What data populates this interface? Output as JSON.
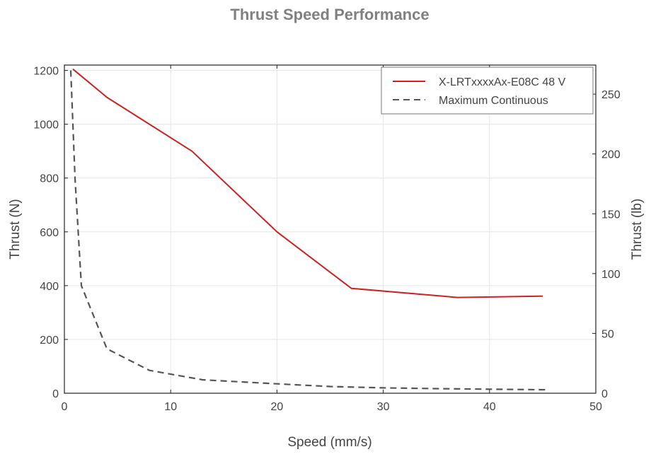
{
  "chart_data": {
    "type": "line",
    "title": "Thrust Speed Performance",
    "xlabel": "Speed (mm/s)",
    "ylabel": "Thrust (N)",
    "ylabel_right": "Thrust (lb)",
    "xlim": [
      0,
      50
    ],
    "ylim": [
      0,
      1220
    ],
    "ylim_right": [
      0,
      274.3
    ],
    "x_ticks": [
      0,
      10,
      20,
      30,
      40,
      50
    ],
    "y_ticks": [
      0,
      200,
      400,
      600,
      800,
      1000,
      1200
    ],
    "y_ticks_right": [
      0,
      50,
      100,
      150,
      200,
      250
    ],
    "grid": true,
    "legend_position": "top-right",
    "series": [
      {
        "name": "X-LRTxxxxAx-E08C 48 V",
        "style": "solid",
        "color": "#cc2222",
        "x": [
          0.8,
          4,
          12,
          20,
          27,
          37,
          45
        ],
        "y": [
          1205,
          1100,
          900,
          600,
          390,
          356,
          361
        ]
      },
      {
        "name": "Maximum Continuous",
        "style": "dashed",
        "color": "#555555",
        "x": [
          0.6,
          1,
          1.6,
          4,
          8,
          13,
          20,
          25,
          30,
          35,
          40,
          45.5
        ],
        "y": [
          1200,
          800,
          400,
          165,
          85,
          50,
          35,
          25,
          20,
          17,
          15,
          13
        ]
      }
    ]
  }
}
